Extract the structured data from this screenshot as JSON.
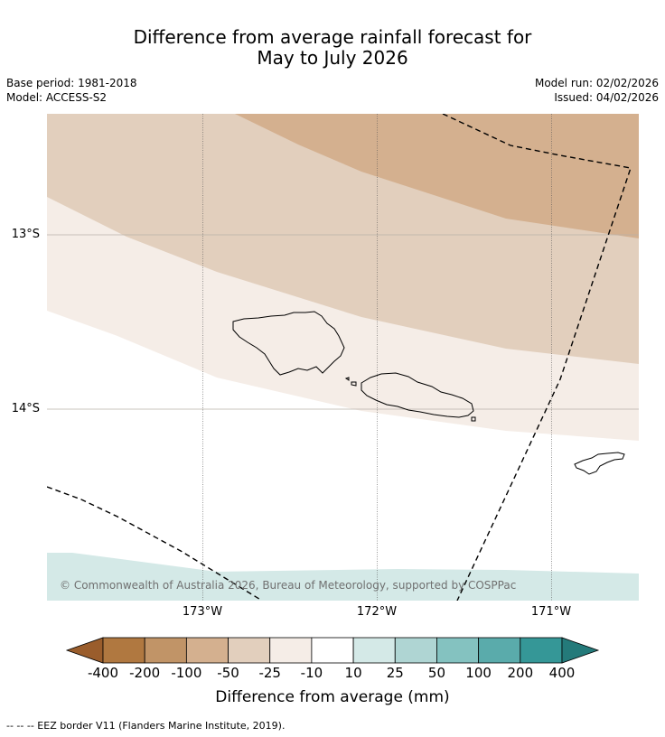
{
  "title_line1": "Difference from average rainfall forecast for",
  "title_line2": "May to July 2026",
  "base_period": "Base period: 1981-2018",
  "model": "Model: ACCESS-S2",
  "model_run": "Model run: 02/02/2026",
  "issued": "Issued: 04/02/2026",
  "lat_labels": [
    "13°S",
    "14°S"
  ],
  "lon_labels": [
    "173°W",
    "172°W",
    "171°W"
  ],
  "copyright": "© Commonwealth of Australia 2026, Bureau of Meteorology, supported by COSPPac",
  "colorbar": {
    "title": "Difference from average (mm)",
    "ticks": [
      "-400",
      "-200",
      "-100",
      "-50",
      "-25",
      "-10",
      "10",
      "25",
      "50",
      "100",
      "200",
      "400"
    ],
    "colors": [
      "#9a5d2c",
      "#b07840",
      "#c19467",
      "#d4b08f",
      "#e2cfbd",
      "#f5ede7",
      "#ffffff",
      "#d4e9e7",
      "#afd5d3",
      "#84c2c0",
      "#5aabab",
      "#359797",
      "#247a7a"
    ]
  },
  "footnote": "--  --  -- EEZ border V11 (Flanders Marine Institute, 2019)."
}
